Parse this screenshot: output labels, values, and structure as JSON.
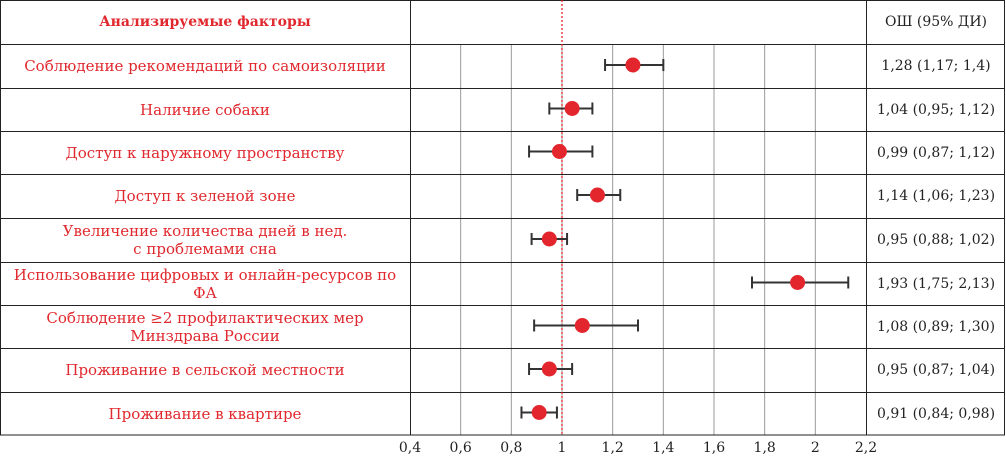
{
  "header": {
    "factor_title": "Анализируемые факторы",
    "or_title": "ОШ (95% ДИ)"
  },
  "rows": [
    {
      "label_lines": [
        "Соблюдение рекомендаций по самоизоляции"
      ],
      "or_text": "1,28 (1,17; 1,4)"
    },
    {
      "label_lines": [
        "Наличие собаки"
      ],
      "or_text": "1,04 (0,95; 1,12)"
    },
    {
      "label_lines": [
        "Доступ к наружному пространству"
      ],
      "or_text": "0,99 (0,87; 1,12)"
    },
    {
      "label_lines": [
        "Доступ к зеленой зоне"
      ],
      "or_text": "1,14 (1,06; 1,23)"
    },
    {
      "label_lines": [
        "Увеличение количества дней в нед.",
        "с проблемами сна"
      ],
      "or_text": "0,95 (0,88; 1,02)"
    },
    {
      "label_lines": [
        "Использование цифровых и онлайн-ресурсов по ФА"
      ],
      "or_text": "1,93 (1,75; 2,13)"
    },
    {
      "label_lines": [
        "Соблюдение ≥2 профилактических мер",
        "Минздрава России"
      ],
      "or_text": "1,08 (0,89; 1,30)"
    },
    {
      "label_lines": [
        "Проживание в сельской местности"
      ],
      "or_text": "0,95 (0,87; 1,04)"
    },
    {
      "label_lines": [
        "Проживание в квартире"
      ],
      "or_text": "0,91 (0,84; 0,98)"
    }
  ],
  "chart_data": {
    "type": "scatter",
    "subtype": "forest-plot",
    "x_range": [
      0.4,
      2.2
    ],
    "x_ticks": [
      0.4,
      0.6,
      0.8,
      1,
      1.2,
      1.4,
      1.6,
      1.8,
      2,
      2.2
    ],
    "x_tick_labels": [
      "0,4",
      "0,6",
      "0,8",
      "1",
      "1,2",
      "1,4",
      "1,6",
      "1,8",
      "2",
      "2,2"
    ],
    "reference_line": 1,
    "grid": true,
    "points": [
      {
        "or": 1.28,
        "lo": 1.17,
        "hi": 1.4
      },
      {
        "or": 1.04,
        "lo": 0.95,
        "hi": 1.12
      },
      {
        "or": 0.99,
        "lo": 0.87,
        "hi": 1.12
      },
      {
        "or": 1.14,
        "lo": 1.06,
        "hi": 1.23
      },
      {
        "or": 0.95,
        "lo": 0.88,
        "hi": 1.02
      },
      {
        "or": 1.93,
        "lo": 1.75,
        "hi": 2.13
      },
      {
        "or": 1.08,
        "lo": 0.89,
        "hi": 1.3
      },
      {
        "or": 0.95,
        "lo": 0.87,
        "hi": 1.04
      },
      {
        "or": 0.91,
        "lo": 0.84,
        "hi": 0.98
      }
    ],
    "colors": {
      "point": "#e3262d",
      "ci": "#333333",
      "reference": "#e0282e",
      "grid": "#9a9a9a"
    }
  }
}
